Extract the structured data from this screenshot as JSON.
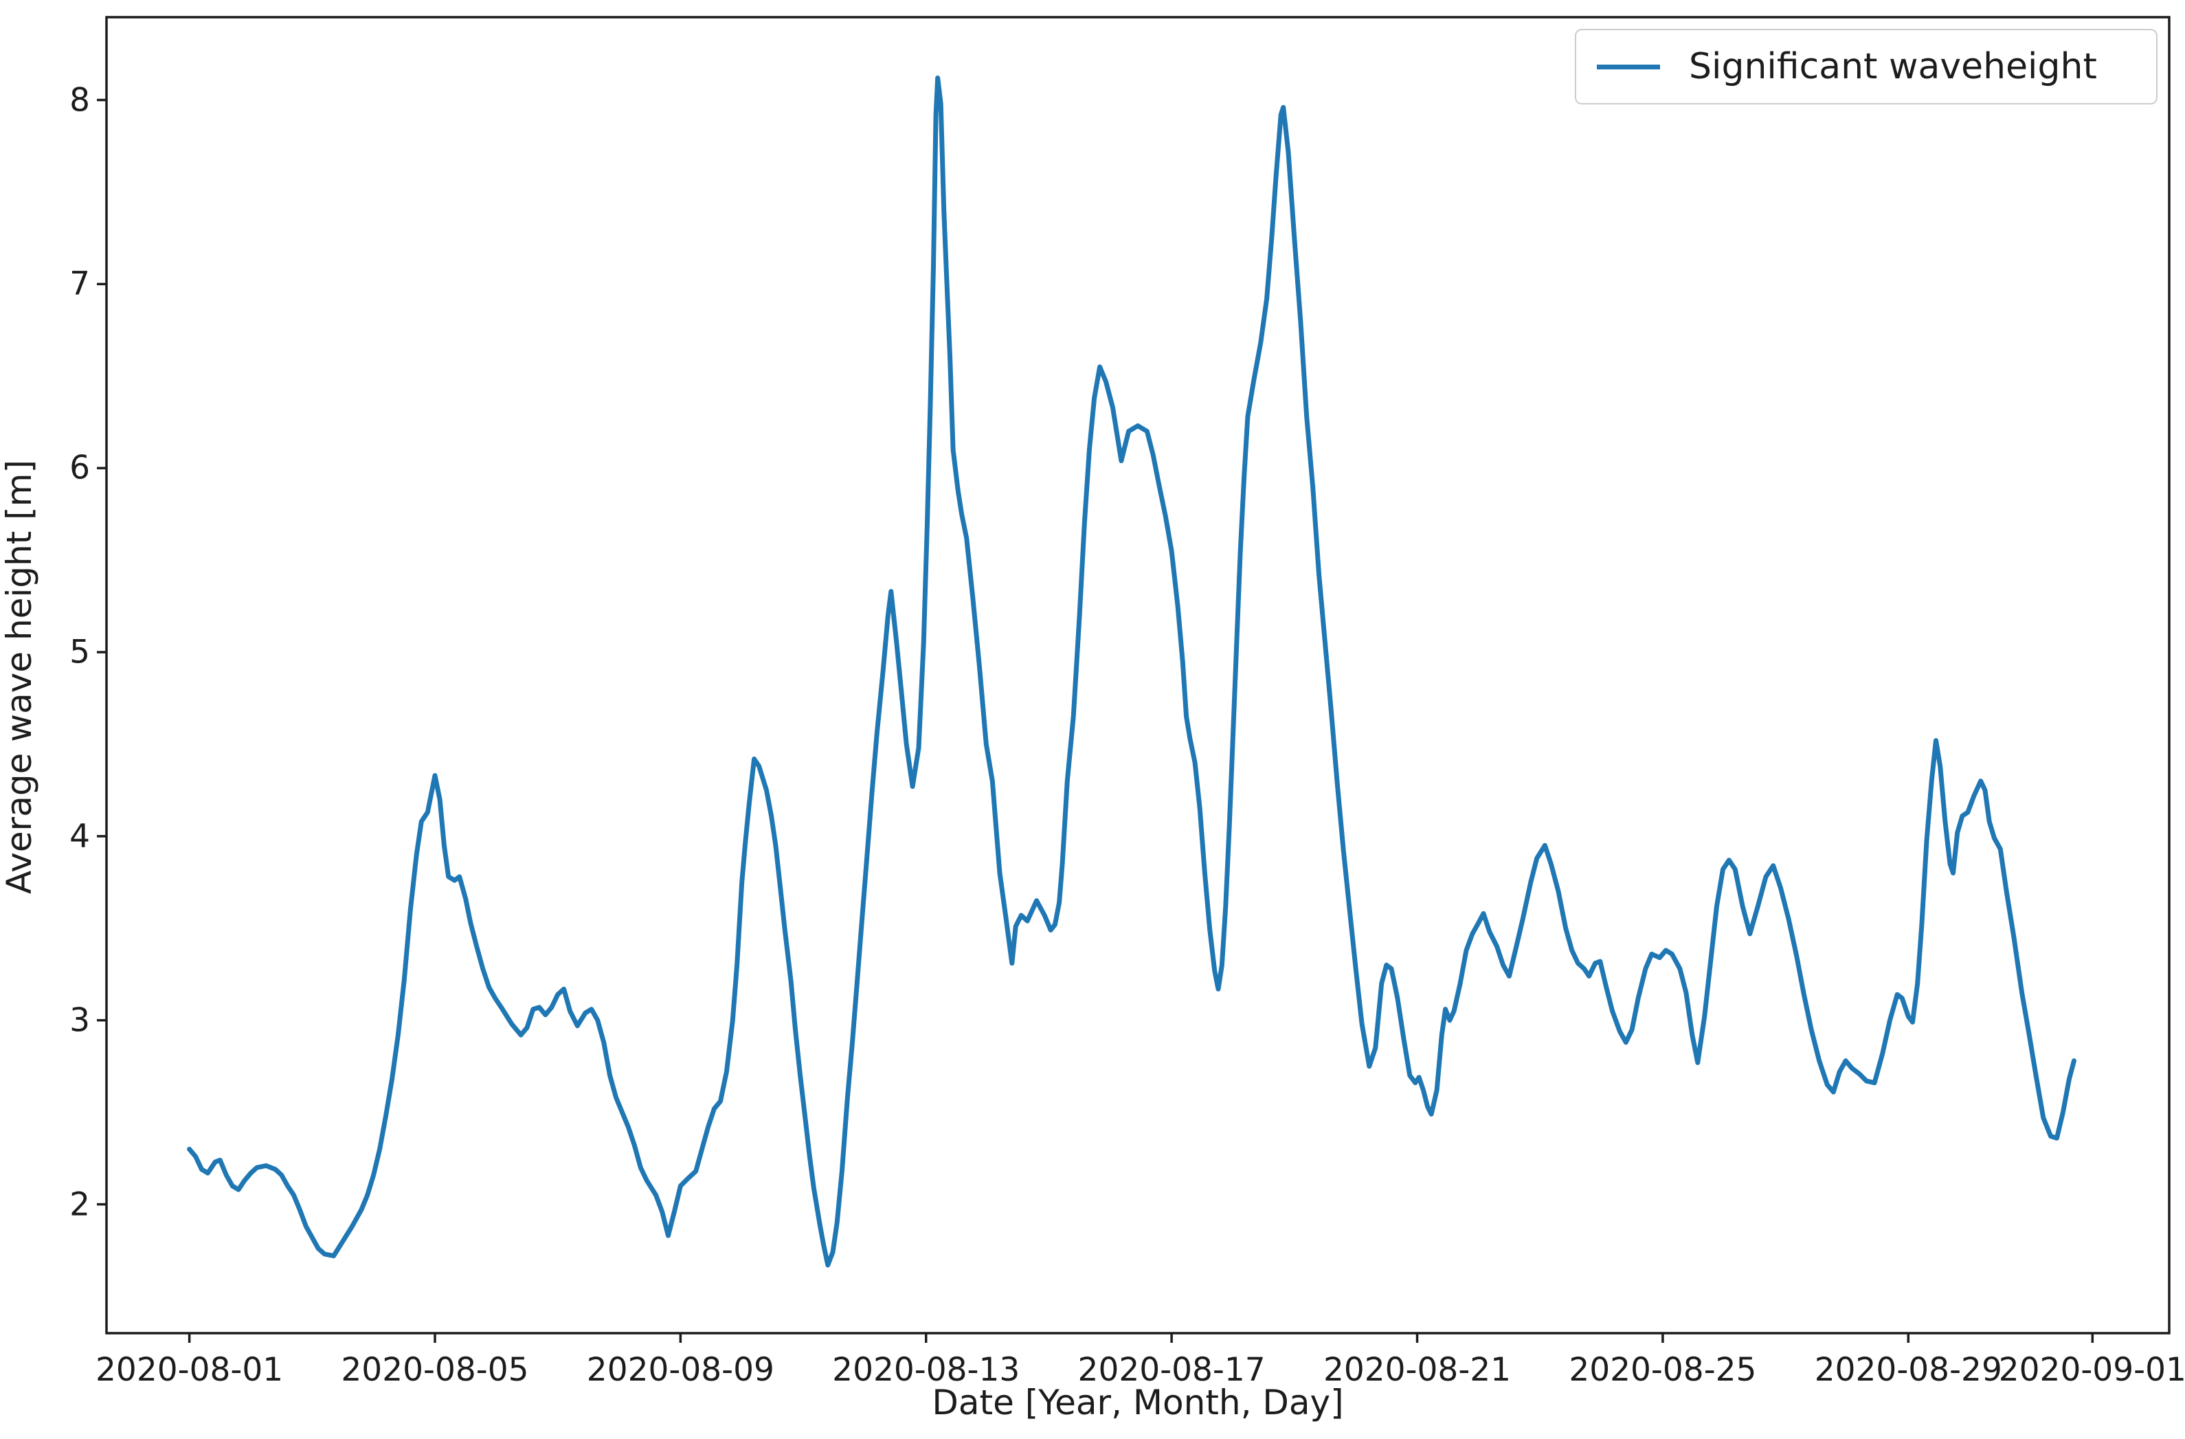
{
  "figure": {
    "background": "#ffffff",
    "spine_color": "#1c1c1c"
  },
  "legend": {
    "label": "Significant waveheight",
    "line_color": "#1f77b4"
  },
  "chart_data": {
    "type": "line",
    "title": "",
    "xlabel": "Date [Year, Month, Day]",
    "ylabel": "Average wave height [m]",
    "legend_entries": [
      "Significant waveheight"
    ],
    "series_color": "#1f77b4",
    "grid": false,
    "legend_position": "upper right",
    "x_unit": "decimal day of August 2020 (32 = 2020-09-01)",
    "xlim_days": [
      -0.35,
      33.25
    ],
    "ylim": [
      1.3,
      8.45
    ],
    "y_ticks": [
      2,
      3,
      4,
      5,
      6,
      7,
      8
    ],
    "x_ticks": [
      {
        "day": 1,
        "label": "2020-08-01"
      },
      {
        "day": 5,
        "label": "2020-08-05"
      },
      {
        "day": 9,
        "label": "2020-08-09"
      },
      {
        "day": 13,
        "label": "2020-08-13"
      },
      {
        "day": 17,
        "label": "2020-08-17"
      },
      {
        "day": 21,
        "label": "2020-08-21"
      },
      {
        "day": 25,
        "label": "2020-08-25"
      },
      {
        "day": 29,
        "label": "2020-08-29"
      },
      {
        "day": 32,
        "label": "2020-09-01"
      }
    ],
    "points": [
      [
        1.0,
        2.3
      ],
      [
        1.1,
        2.26
      ],
      [
        1.2,
        2.19
      ],
      [
        1.3,
        2.17
      ],
      [
        1.42,
        2.23
      ],
      [
        1.5,
        2.24
      ],
      [
        1.6,
        2.16
      ],
      [
        1.7,
        2.1
      ],
      [
        1.8,
        2.08
      ],
      [
        1.9,
        2.13
      ],
      [
        2.0,
        2.17
      ],
      [
        2.1,
        2.2
      ],
      [
        2.25,
        2.21
      ],
      [
        2.4,
        2.19
      ],
      [
        2.5,
        2.16
      ],
      [
        2.6,
        2.1
      ],
      [
        2.7,
        2.05
      ],
      [
        2.8,
        1.97
      ],
      [
        2.9,
        1.88
      ],
      [
        3.0,
        1.82
      ],
      [
        3.1,
        1.76
      ],
      [
        3.2,
        1.73
      ],
      [
        3.35,
        1.72
      ],
      [
        3.5,
        1.8
      ],
      [
        3.65,
        1.88
      ],
      [
        3.8,
        1.97
      ],
      [
        3.9,
        2.05
      ],
      [
        4.0,
        2.16
      ],
      [
        4.1,
        2.3
      ],
      [
        4.2,
        2.48
      ],
      [
        4.3,
        2.68
      ],
      [
        4.4,
        2.92
      ],
      [
        4.5,
        3.22
      ],
      [
        4.6,
        3.6
      ],
      [
        4.7,
        3.9
      ],
      [
        4.78,
        4.08
      ],
      [
        4.88,
        4.13
      ],
      [
        5.0,
        4.33
      ],
      [
        5.08,
        4.2
      ],
      [
        5.15,
        3.95
      ],
      [
        5.22,
        3.78
      ],
      [
        5.32,
        3.76
      ],
      [
        5.4,
        3.78
      ],
      [
        5.5,
        3.66
      ],
      [
        5.58,
        3.53
      ],
      [
        5.68,
        3.4
      ],
      [
        5.78,
        3.28
      ],
      [
        5.88,
        3.18
      ],
      [
        5.98,
        3.12
      ],
      [
        6.1,
        3.06
      ],
      [
        6.25,
        2.98
      ],
      [
        6.4,
        2.92
      ],
      [
        6.5,
        2.96
      ],
      [
        6.6,
        3.06
      ],
      [
        6.7,
        3.07
      ],
      [
        6.8,
        3.03
      ],
      [
        6.9,
        3.07
      ],
      [
        7.0,
        3.14
      ],
      [
        7.1,
        3.17
      ],
      [
        7.2,
        3.05
      ],
      [
        7.32,
        2.97
      ],
      [
        7.45,
        3.04
      ],
      [
        7.55,
        3.06
      ],
      [
        7.65,
        3.0
      ],
      [
        7.75,
        2.88
      ],
      [
        7.85,
        2.7
      ],
      [
        7.95,
        2.58
      ],
      [
        8.05,
        2.5
      ],
      [
        8.15,
        2.42
      ],
      [
        8.25,
        2.32
      ],
      [
        8.35,
        2.2
      ],
      [
        8.45,
        2.13
      ],
      [
        8.6,
        2.05
      ],
      [
        8.7,
        1.96
      ],
      [
        8.8,
        1.83
      ],
      [
        8.9,
        1.96
      ],
      [
        9.0,
        2.1
      ],
      [
        9.12,
        2.14
      ],
      [
        9.25,
        2.18
      ],
      [
        9.35,
        2.3
      ],
      [
        9.45,
        2.42
      ],
      [
        9.55,
        2.52
      ],
      [
        9.65,
        2.56
      ],
      [
        9.75,
        2.72
      ],
      [
        9.85,
        3.0
      ],
      [
        9.92,
        3.3
      ],
      [
        10.0,
        3.75
      ],
      [
        10.06,
        3.98
      ],
      [
        10.12,
        4.18
      ],
      [
        10.2,
        4.42
      ],
      [
        10.28,
        4.38
      ],
      [
        10.4,
        4.25
      ],
      [
        10.48,
        4.11
      ],
      [
        10.55,
        3.95
      ],
      [
        10.62,
        3.74
      ],
      [
        10.7,
        3.49
      ],
      [
        10.8,
        3.21
      ],
      [
        10.87,
        2.95
      ],
      [
        10.95,
        2.7
      ],
      [
        11.02,
        2.5
      ],
      [
        11.1,
        2.27
      ],
      [
        11.17,
        2.09
      ],
      [
        11.27,
        1.89
      ],
      [
        11.33,
        1.78
      ],
      [
        11.4,
        1.67
      ],
      [
        11.48,
        1.74
      ],
      [
        11.55,
        1.9
      ],
      [
        11.63,
        2.18
      ],
      [
        11.72,
        2.58
      ],
      [
        11.8,
        2.88
      ],
      [
        11.88,
        3.22
      ],
      [
        11.96,
        3.56
      ],
      [
        12.04,
        3.9
      ],
      [
        12.12,
        4.24
      ],
      [
        12.2,
        4.56
      ],
      [
        12.3,
        4.9
      ],
      [
        12.38,
        5.2
      ],
      [
        12.43,
        5.33
      ],
      [
        12.52,
        5.05
      ],
      [
        12.6,
        4.78
      ],
      [
        12.68,
        4.5
      ],
      [
        12.78,
        4.27
      ],
      [
        12.88,
        4.48
      ],
      [
        12.96,
        5.05
      ],
      [
        13.02,
        5.7
      ],
      [
        13.07,
        6.35
      ],
      [
        13.12,
        7.1
      ],
      [
        13.16,
        7.92
      ],
      [
        13.19,
        8.12
      ],
      [
        13.24,
        7.98
      ],
      [
        13.29,
        7.4
      ],
      [
        13.34,
        7.0
      ],
      [
        13.39,
        6.6
      ],
      [
        13.44,
        6.1
      ],
      [
        13.52,
        5.88
      ],
      [
        13.58,
        5.75
      ],
      [
        13.66,
        5.62
      ],
      [
        13.76,
        5.3
      ],
      [
        13.87,
        4.92
      ],
      [
        13.98,
        4.5
      ],
      [
        14.08,
        4.3
      ],
      [
        14.2,
        3.8
      ],
      [
        14.3,
        3.56
      ],
      [
        14.4,
        3.31
      ],
      [
        14.46,
        3.51
      ],
      [
        14.55,
        3.57
      ],
      [
        14.65,
        3.54
      ],
      [
        14.8,
        3.65
      ],
      [
        14.93,
        3.57
      ],
      [
        15.03,
        3.49
      ],
      [
        15.1,
        3.52
      ],
      [
        15.17,
        3.64
      ],
      [
        15.22,
        3.85
      ],
      [
        15.3,
        4.3
      ],
      [
        15.4,
        4.65
      ],
      [
        15.5,
        5.2
      ],
      [
        15.58,
        5.7
      ],
      [
        15.66,
        6.1
      ],
      [
        15.74,
        6.38
      ],
      [
        15.83,
        6.55
      ],
      [
        15.93,
        6.47
      ],
      [
        16.04,
        6.33
      ],
      [
        16.18,
        6.04
      ],
      [
        16.3,
        6.2
      ],
      [
        16.45,
        6.23
      ],
      [
        16.6,
        6.2
      ],
      [
        16.7,
        6.07
      ],
      [
        16.8,
        5.9
      ],
      [
        16.9,
        5.74
      ],
      [
        17.0,
        5.55
      ],
      [
        17.1,
        5.25
      ],
      [
        17.18,
        4.95
      ],
      [
        17.24,
        4.65
      ],
      [
        17.3,
        4.53
      ],
      [
        17.38,
        4.4
      ],
      [
        17.46,
        4.15
      ],
      [
        17.54,
        3.8
      ],
      [
        17.62,
        3.5
      ],
      [
        17.7,
        3.27
      ],
      [
        17.76,
        3.17
      ],
      [
        17.82,
        3.3
      ],
      [
        17.88,
        3.62
      ],
      [
        17.94,
        4.05
      ],
      [
        18.0,
        4.55
      ],
      [
        18.06,
        5.05
      ],
      [
        18.12,
        5.55
      ],
      [
        18.18,
        5.95
      ],
      [
        18.24,
        6.28
      ],
      [
        18.34,
        6.48
      ],
      [
        18.45,
        6.68
      ],
      [
        18.55,
        6.92
      ],
      [
        18.63,
        7.25
      ],
      [
        18.7,
        7.58
      ],
      [
        18.78,
        7.92
      ],
      [
        18.82,
        7.96
      ],
      [
        18.9,
        7.72
      ],
      [
        19.0,
        7.25
      ],
      [
        19.1,
        6.8
      ],
      [
        19.2,
        6.28
      ],
      [
        19.3,
        5.9
      ],
      [
        19.4,
        5.42
      ],
      [
        19.5,
        5.05
      ],
      [
        19.6,
        4.68
      ],
      [
        19.7,
        4.28
      ],
      [
        19.8,
        3.92
      ],
      [
        19.9,
        3.6
      ],
      [
        20.0,
        3.28
      ],
      [
        20.1,
        2.98
      ],
      [
        20.22,
        2.75
      ],
      [
        20.32,
        2.85
      ],
      [
        20.42,
        3.2
      ],
      [
        20.5,
        3.3
      ],
      [
        20.58,
        3.28
      ],
      [
        20.68,
        3.12
      ],
      [
        20.78,
        2.9
      ],
      [
        20.88,
        2.7
      ],
      [
        20.97,
        2.66
      ],
      [
        21.03,
        2.69
      ],
      [
        21.1,
        2.62
      ],
      [
        21.17,
        2.53
      ],
      [
        21.23,
        2.49
      ],
      [
        21.32,
        2.62
      ],
      [
        21.4,
        2.92
      ],
      [
        21.46,
        3.06
      ],
      [
        21.53,
        3.0
      ],
      [
        21.6,
        3.05
      ],
      [
        21.7,
        3.2
      ],
      [
        21.8,
        3.38
      ],
      [
        21.9,
        3.47
      ],
      [
        22.0,
        3.53
      ],
      [
        22.08,
        3.58
      ],
      [
        22.18,
        3.48
      ],
      [
        22.3,
        3.4
      ],
      [
        22.4,
        3.3
      ],
      [
        22.5,
        3.24
      ],
      [
        22.6,
        3.38
      ],
      [
        22.72,
        3.55
      ],
      [
        22.85,
        3.75
      ],
      [
        22.95,
        3.88
      ],
      [
        23.08,
        3.95
      ],
      [
        23.18,
        3.85
      ],
      [
        23.3,
        3.7
      ],
      [
        23.42,
        3.5
      ],
      [
        23.52,
        3.38
      ],
      [
        23.62,
        3.31
      ],
      [
        23.72,
        3.28
      ],
      [
        23.8,
        3.24
      ],
      [
        23.9,
        3.31
      ],
      [
        23.98,
        3.32
      ],
      [
        24.08,
        3.18
      ],
      [
        24.18,
        3.05
      ],
      [
        24.3,
        2.94
      ],
      [
        24.4,
        2.88
      ],
      [
        24.5,
        2.95
      ],
      [
        24.6,
        3.12
      ],
      [
        24.72,
        3.28
      ],
      [
        24.82,
        3.36
      ],
      [
        24.95,
        3.34
      ],
      [
        25.05,
        3.38
      ],
      [
        25.15,
        3.36
      ],
      [
        25.28,
        3.28
      ],
      [
        25.38,
        3.15
      ],
      [
        25.48,
        2.92
      ],
      [
        25.57,
        2.77
      ],
      [
        25.68,
        3.02
      ],
      [
        25.78,
        3.32
      ],
      [
        25.88,
        3.62
      ],
      [
        25.98,
        3.82
      ],
      [
        26.08,
        3.87
      ],
      [
        26.18,
        3.82
      ],
      [
        26.3,
        3.62
      ],
      [
        26.42,
        3.47
      ],
      [
        26.55,
        3.62
      ],
      [
        26.68,
        3.78
      ],
      [
        26.8,
        3.84
      ],
      [
        26.92,
        3.72
      ],
      [
        27.05,
        3.55
      ],
      [
        27.18,
        3.35
      ],
      [
        27.3,
        3.14
      ],
      [
        27.42,
        2.95
      ],
      [
        27.55,
        2.78
      ],
      [
        27.68,
        2.65
      ],
      [
        27.78,
        2.61
      ],
      [
        27.88,
        2.72
      ],
      [
        27.98,
        2.78
      ],
      [
        28.08,
        2.74
      ],
      [
        28.2,
        2.71
      ],
      [
        28.32,
        2.67
      ],
      [
        28.45,
        2.66
      ],
      [
        28.58,
        2.82
      ],
      [
        28.7,
        3.0
      ],
      [
        28.82,
        3.14
      ],
      [
        28.9,
        3.12
      ],
      [
        29.0,
        3.02
      ],
      [
        29.07,
        2.99
      ],
      [
        29.15,
        3.2
      ],
      [
        29.22,
        3.52
      ],
      [
        29.3,
        3.98
      ],
      [
        29.38,
        4.3
      ],
      [
        29.45,
        4.52
      ],
      [
        29.52,
        4.38
      ],
      [
        29.6,
        4.08
      ],
      [
        29.68,
        3.85
      ],
      [
        29.73,
        3.8
      ],
      [
        29.8,
        4.02
      ],
      [
        29.88,
        4.11
      ],
      [
        29.97,
        4.13
      ],
      [
        30.07,
        4.22
      ],
      [
        30.18,
        4.3
      ],
      [
        30.25,
        4.25
      ],
      [
        30.32,
        4.08
      ],
      [
        30.4,
        3.99
      ],
      [
        30.5,
        3.93
      ],
      [
        30.6,
        3.7
      ],
      [
        30.72,
        3.45
      ],
      [
        30.85,
        3.15
      ],
      [
        30.97,
        2.92
      ],
      [
        31.08,
        2.7
      ],
      [
        31.2,
        2.47
      ],
      [
        31.32,
        2.37
      ],
      [
        31.42,
        2.36
      ],
      [
        31.52,
        2.5
      ],
      [
        31.62,
        2.68
      ],
      [
        31.7,
        2.78
      ]
    ]
  }
}
